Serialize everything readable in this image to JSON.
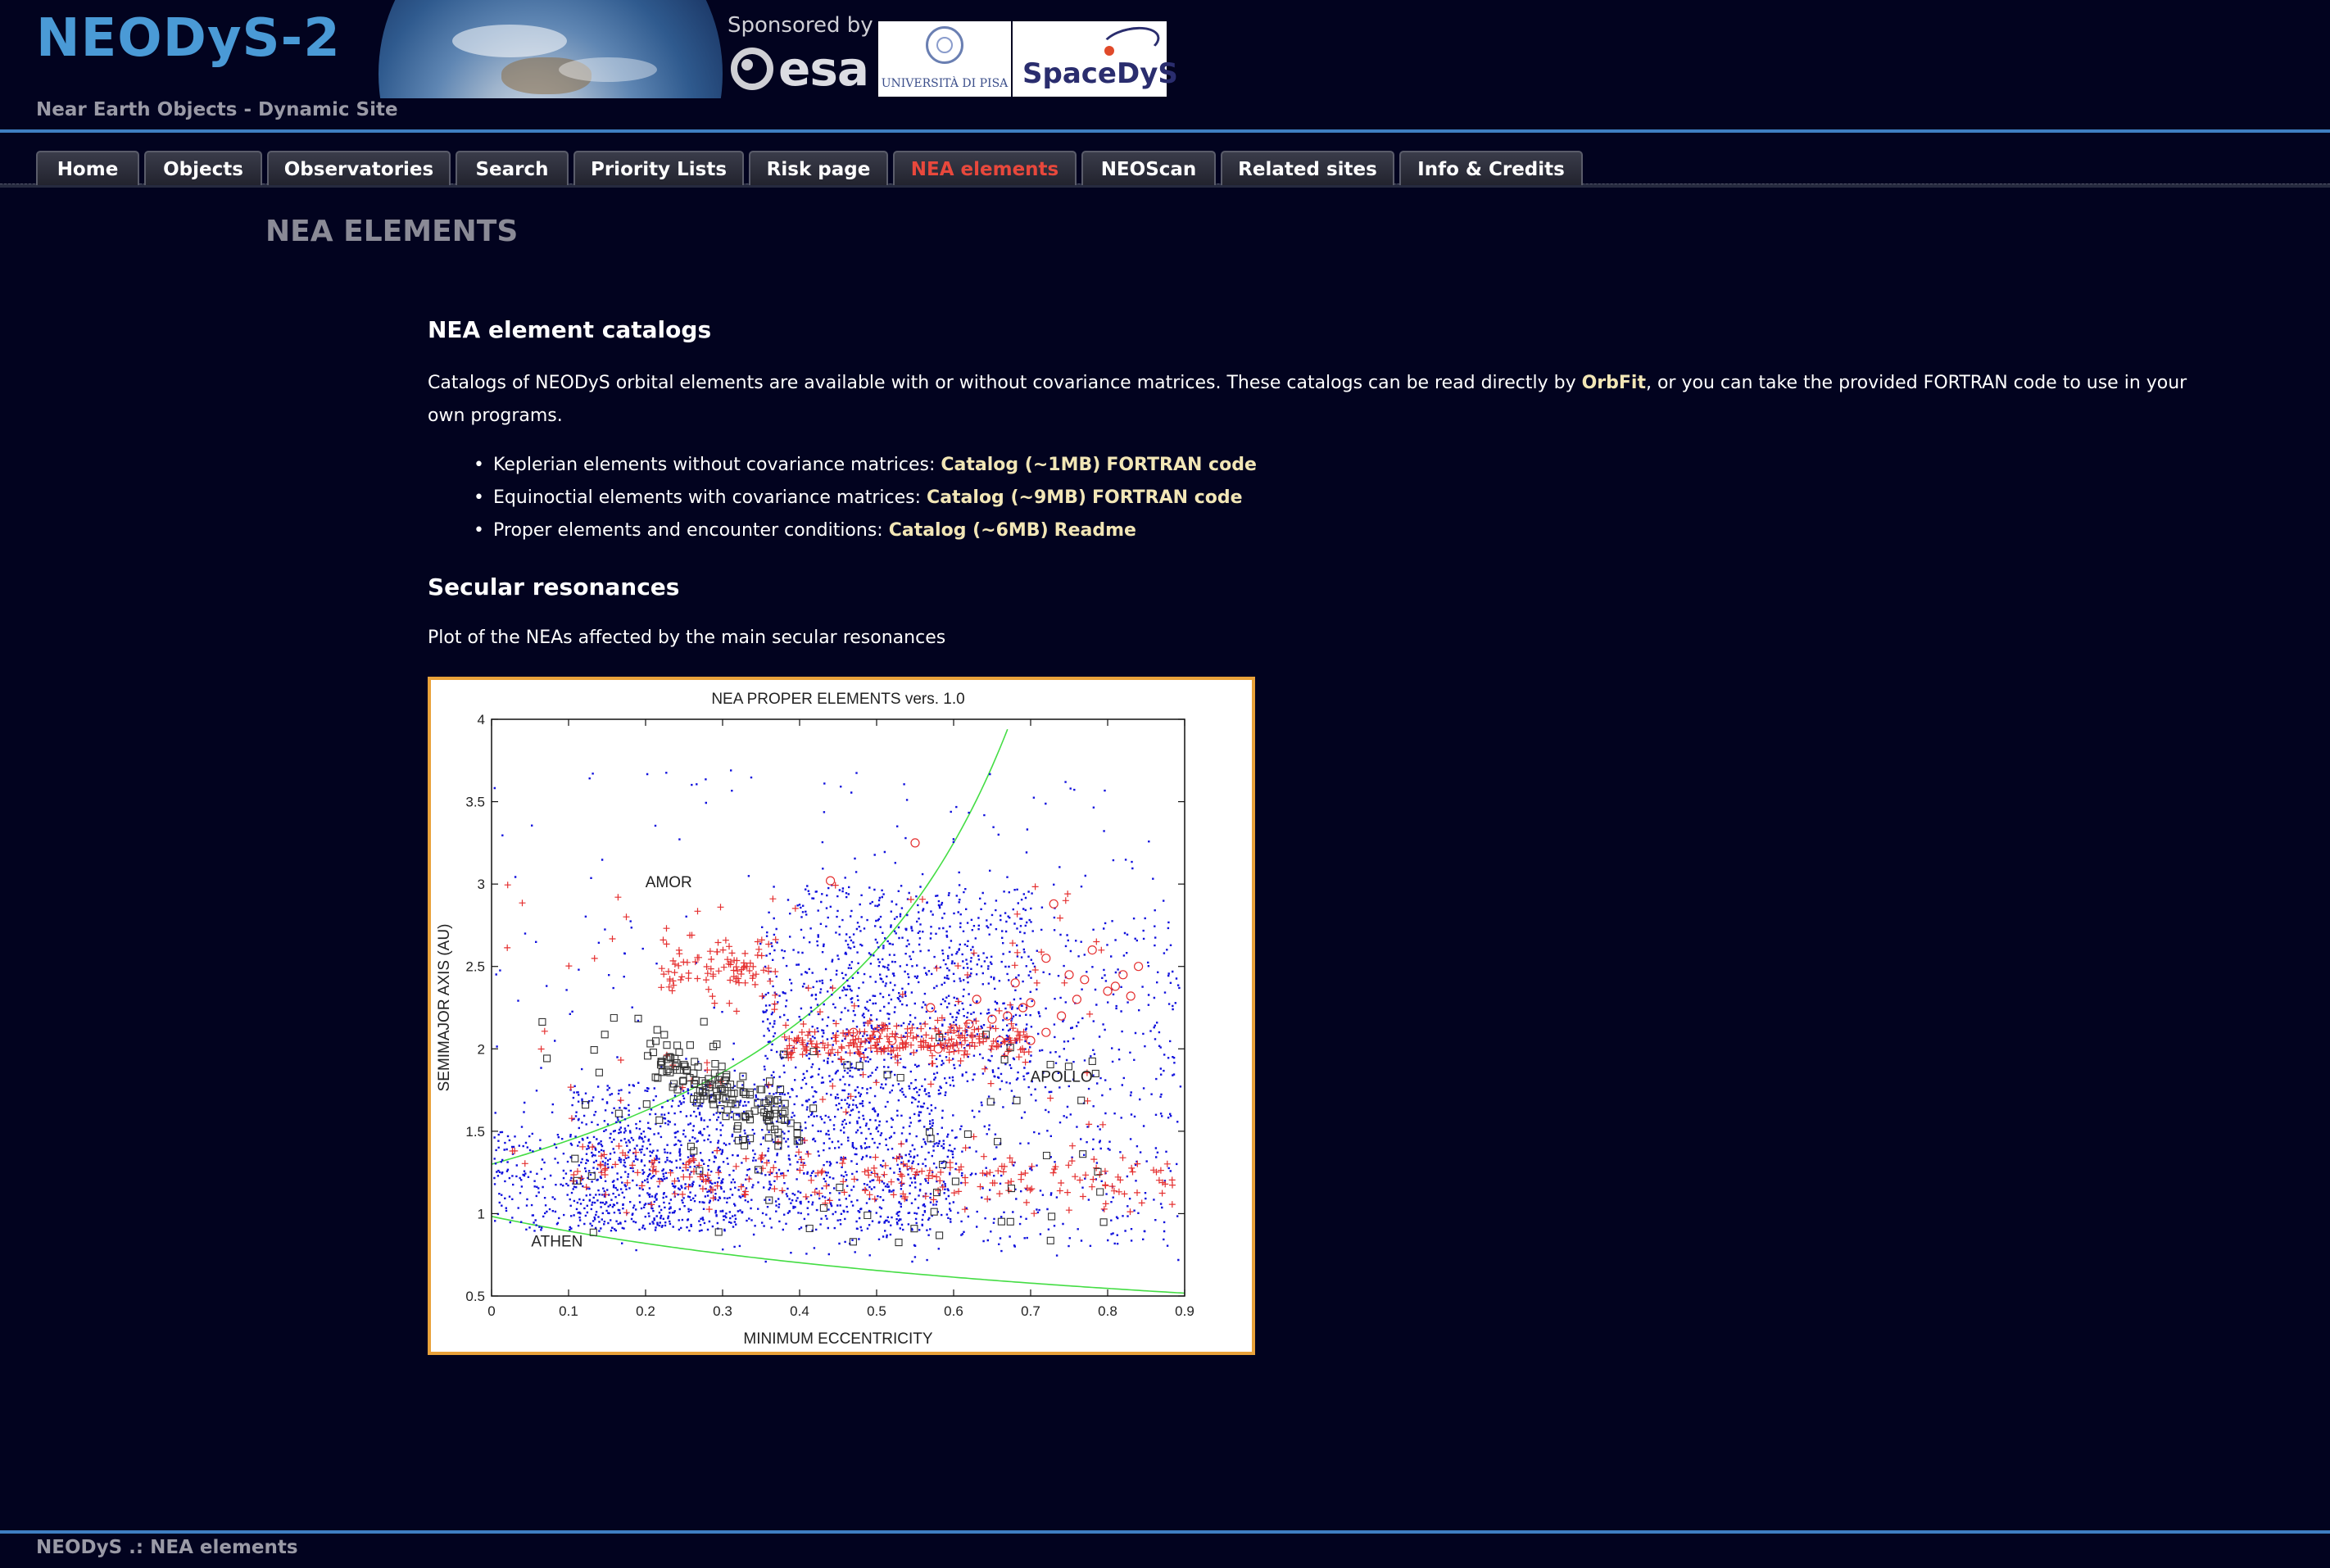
{
  "header": {
    "title": "NEODyS-2",
    "subtitle": "Near Earth Objects - Dynamic Site",
    "sponsored_by": "Sponsored by",
    "sponsor_esa": "esa",
    "sponsor_unipi": "UNIVERSITÀ DI PISA",
    "sponsor_spacedys": "SpaceDyS"
  },
  "nav": {
    "items": [
      {
        "label": "Home"
      },
      {
        "label": "Objects"
      },
      {
        "label": "Observatories"
      },
      {
        "label": "Search"
      },
      {
        "label": "Priority Lists"
      },
      {
        "label": "Risk page"
      },
      {
        "label": "NEA elements",
        "active": true
      },
      {
        "label": "NEOScan"
      },
      {
        "label": "Related sites"
      },
      {
        "label": "Info & Credits"
      }
    ],
    "active_color": "#e8483c"
  },
  "main": {
    "page_heading": "NEA ELEMENTS",
    "catalogs": {
      "heading": "NEA element catalogs",
      "intro_before": "Catalogs of NEODyS orbital elements are available with or without covariance matrices. These catalogs can be read directly by ",
      "intro_link": "OrbFit",
      "intro_after": ", or you can take the provided FORTRAN code to use in your own programs.",
      "items": [
        {
          "text": "Keplerian elements without covariance matrices: ",
          "link1": "Catalog (~1MB)",
          "link2": "FORTRAN code"
        },
        {
          "text": "Equinoctial elements with covariance matrices: ",
          "link1": "Catalog (~9MB)",
          "link2": "FORTRAN code"
        },
        {
          "text": "Proper elements and encounter conditions: ",
          "link1": "Catalog (~6MB)",
          "link2": "Readme"
        }
      ]
    },
    "secular": {
      "heading": "Secular resonances",
      "caption": "Plot of the NEAs affected by the main secular resonances"
    }
  },
  "chart_data": {
    "type": "scatter",
    "title": "NEA PROPER ELEMENTS vers. 1.0",
    "xlabel": "MINIMUM ECCENTRICITY",
    "ylabel": "SEMIMAJOR AXIS (AU)",
    "xlim": [
      0,
      0.9
    ],
    "ylim": [
      0.5,
      4
    ],
    "xticks": [
      "0",
      "0.1",
      "0.2",
      "0.3",
      "0.4",
      "0.5",
      "0.6",
      "0.7",
      "0.8",
      "0.9"
    ],
    "yticks": [
      "0.5",
      "1",
      "1.5",
      "2",
      "2.5",
      "3",
      "3.5",
      "4"
    ],
    "grid": false,
    "annotations": [
      {
        "text": "AMOR",
        "x": 0.23,
        "y": 2.98
      },
      {
        "text": "APOLLO",
        "x": 0.74,
        "y": 1.8
      },
      {
        "text": "ATHEN",
        "x": 0.085,
        "y": 0.8
      }
    ],
    "boundary_curves": [
      {
        "name": "q = 1.3 AU",
        "formula": "a = 1.3/(1-e)",
        "color": "#44dd44"
      },
      {
        "name": "Q = 0.983 AU",
        "formula": "a = 0.983/(1+e)",
        "color": "#44dd44"
      }
    ],
    "series": [
      {
        "marker": "dot",
        "color": "#1010dd",
        "n_points": 3400
      },
      {
        "marker": "plus",
        "color": "#e53030",
        "n_points": 640
      },
      {
        "marker": "square",
        "color": "#333333",
        "n_points": 210
      },
      {
        "marker": "circle",
        "color": "#e53030",
        "n_points": 30
      }
    ]
  },
  "footer": {
    "text": "NEODyS .: NEA elements"
  }
}
